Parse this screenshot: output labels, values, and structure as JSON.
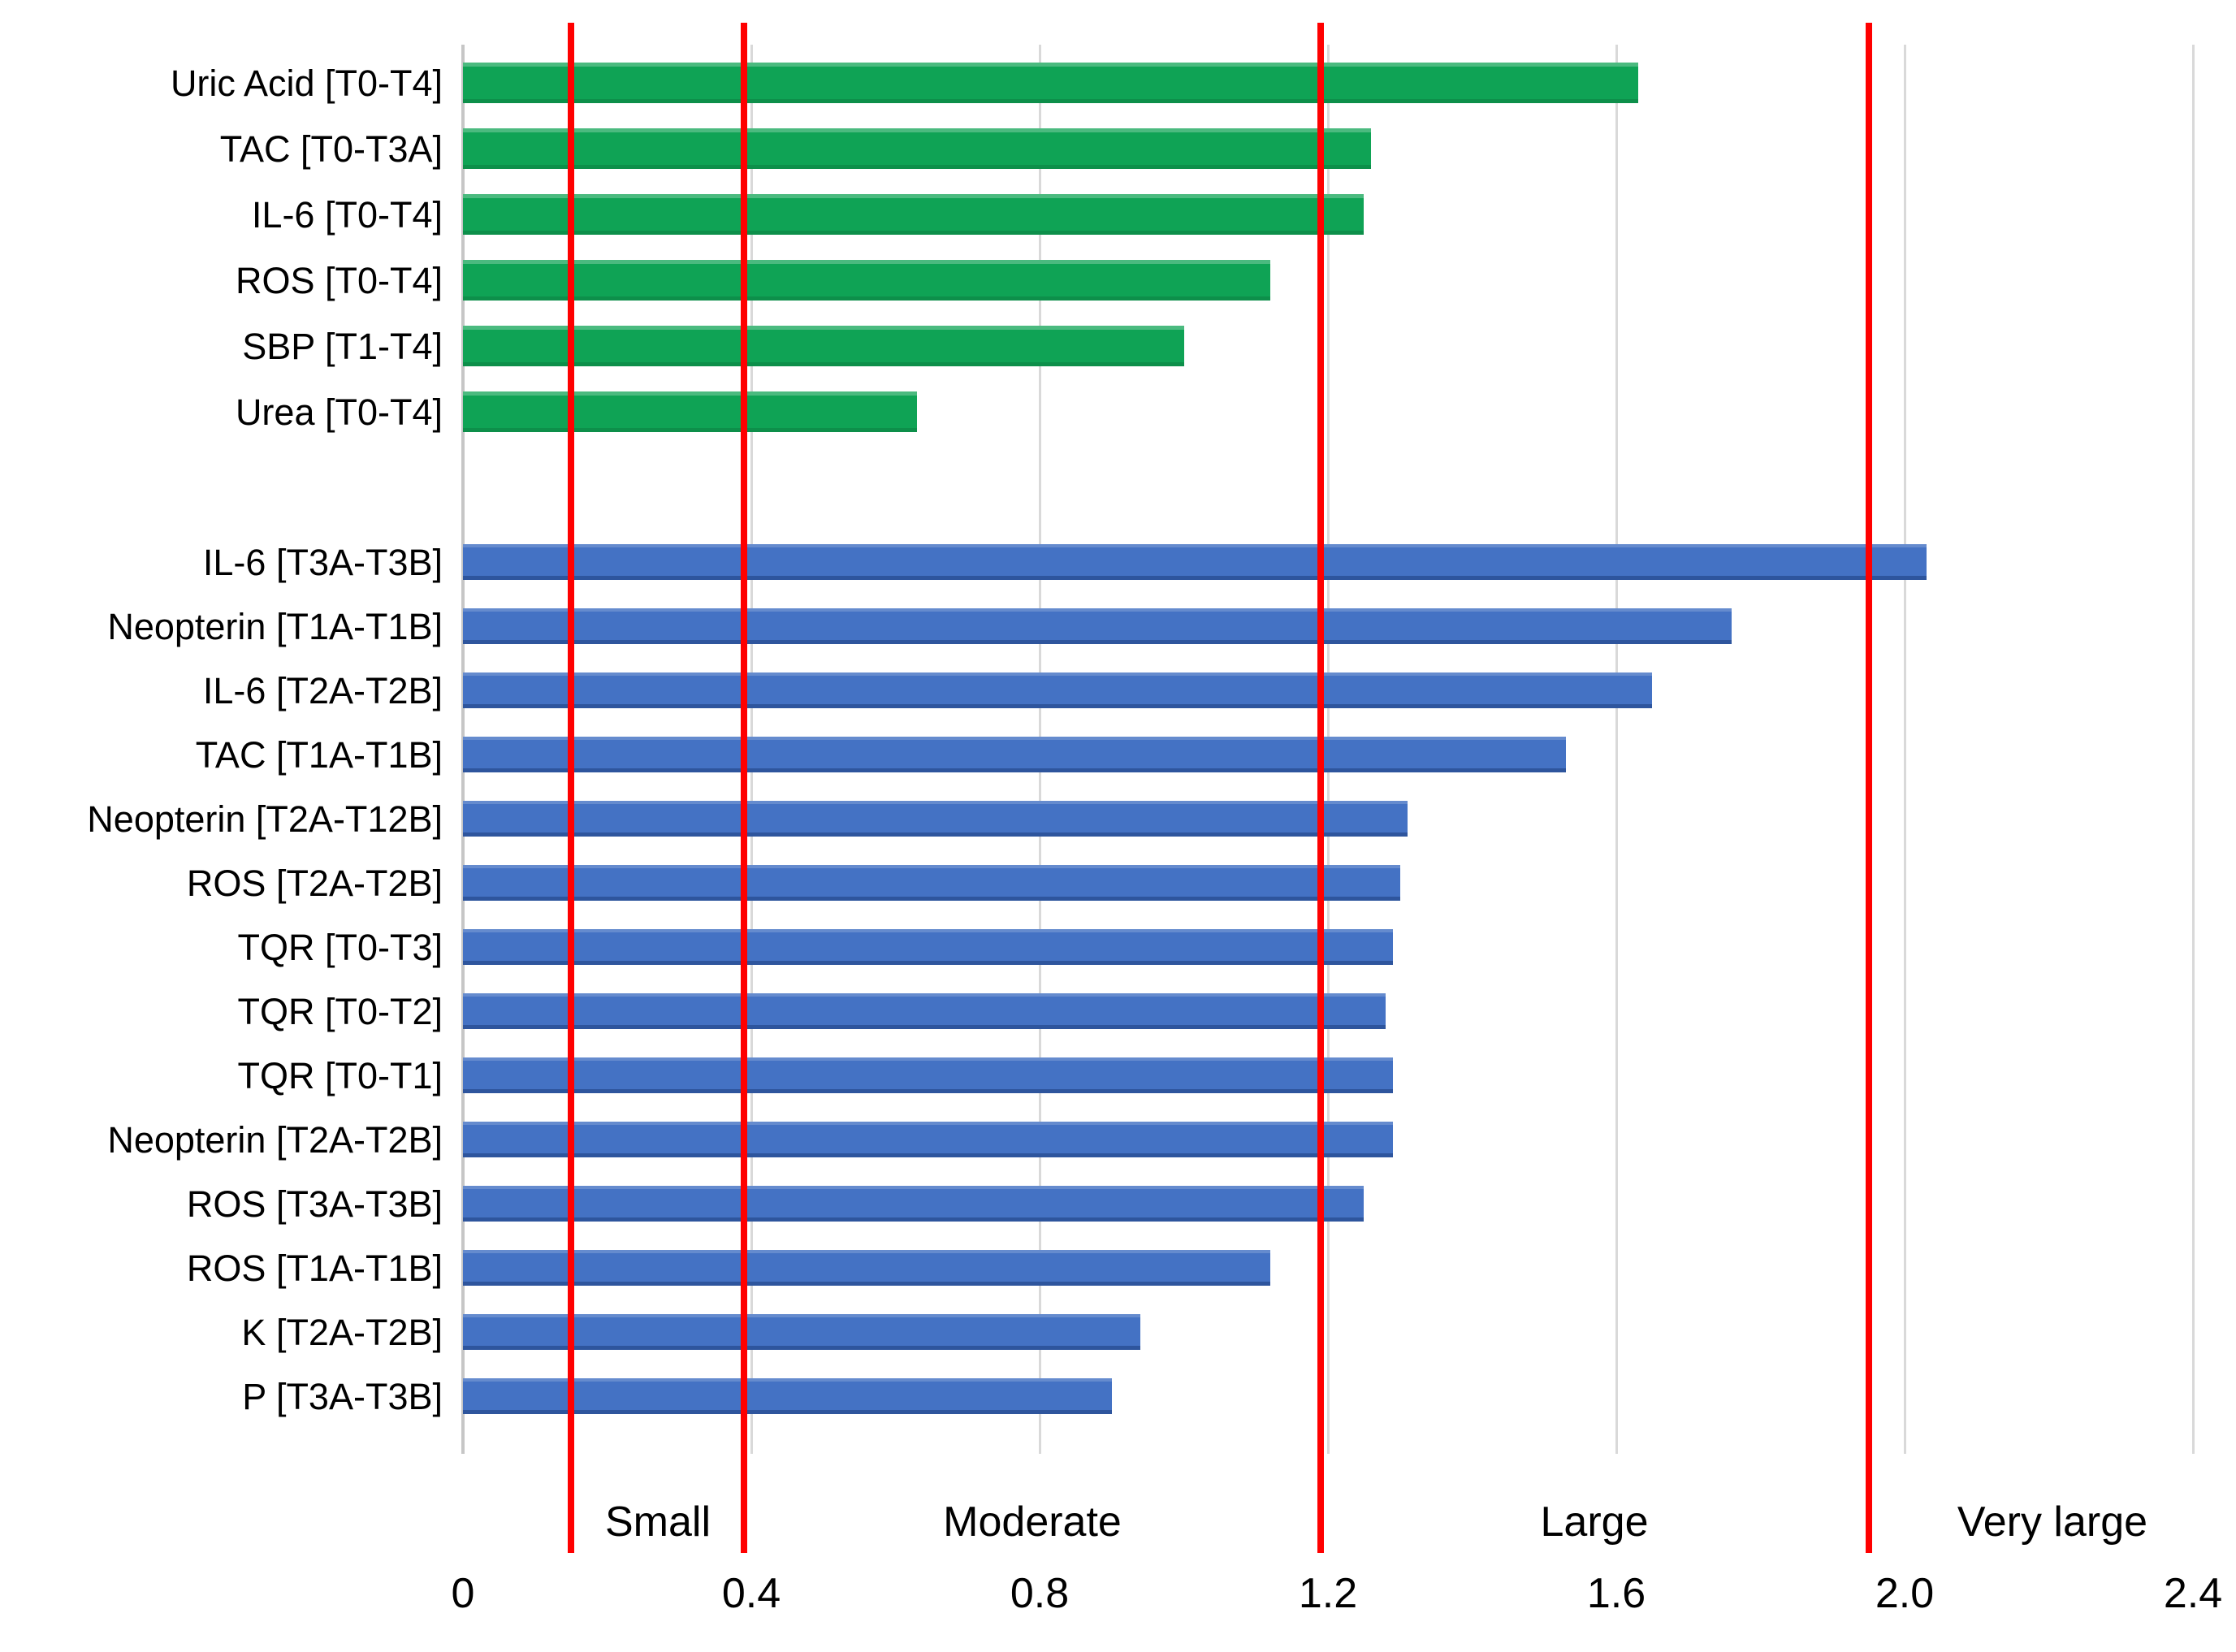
{
  "chart_data": {
    "type": "bar",
    "orientation": "horizontal",
    "title": "",
    "xlabel": "",
    "ylabel": "",
    "xlim": [
      0,
      2.4
    ],
    "grid": true,
    "legend_position": "none",
    "x_ticks": [
      {
        "value": 0.0,
        "label": "0"
      },
      {
        "value": 0.4,
        "label": "0.4"
      },
      {
        "value": 0.8,
        "label": "0.8"
      },
      {
        "value": 1.2,
        "label": "1.2"
      },
      {
        "value": 1.6,
        "label": "1.6"
      },
      {
        "value": 2.0,
        "label": "2.0"
      },
      {
        "value": 2.4,
        "label": "2.4"
      }
    ],
    "thresholds": [
      {
        "value": 0.15,
        "color": "#ff0000"
      },
      {
        "value": 0.39,
        "color": "#ff0000"
      },
      {
        "value": 1.19,
        "color": "#ff0000"
      },
      {
        "value": 1.95,
        "color": "#ff0000"
      }
    ],
    "zones": [
      {
        "label": "Small"
      },
      {
        "label": "Moderate"
      },
      {
        "label": "Large"
      },
      {
        "label": "Very large"
      }
    ],
    "groups": [
      {
        "name": "green-series",
        "color": "#0fa355",
        "bars": [
          {
            "label": "Uric Acid [T0-T4]",
            "value": 1.63
          },
          {
            "label": "TAC [T0-T3A]",
            "value": 1.26
          },
          {
            "label": "IL-6 [T0-T4]",
            "value": 1.25
          },
          {
            "label": "ROS [T0-T4]",
            "value": 1.12
          },
          {
            "label": "SBP [T1-T4]",
            "value": 1.0
          },
          {
            "label": "Urea [T0-T4]",
            "value": 0.63
          }
        ]
      },
      {
        "name": "blue-series",
        "color": "#4472c4",
        "bars": [
          {
            "label": "IL-6 [T3A-T3B]",
            "value": 2.03
          },
          {
            "label": "Neopterin [T1A-T1B]",
            "value": 1.76
          },
          {
            "label": "IL-6 [T2A-T2B]",
            "value": 1.65
          },
          {
            "label": "TAC [T1A-T1B]",
            "value": 1.53
          },
          {
            "label": "Neopterin [T2A-T12B]",
            "value": 1.31
          },
          {
            "label": "ROS [T2A-T2B]",
            "value": 1.3
          },
          {
            "label": "TQR [T0-T3]",
            "value": 1.29
          },
          {
            "label": "TQR [T0-T2]",
            "value": 1.28
          },
          {
            "label": "TQR [T0-T1]",
            "value": 1.29
          },
          {
            "label": "Neopterin [T2A-T2B]",
            "value": 1.29
          },
          {
            "label": "ROS [T3A-T3B]",
            "value": 1.25
          },
          {
            "label": "ROS [T1A-T1B]",
            "value": 1.12
          },
          {
            "label": "K [T2A-T2B]",
            "value": 0.94
          },
          {
            "label": "P [T3A-T3B]",
            "value": 0.9
          }
        ]
      }
    ],
    "colors": {
      "green_bar": "#0fa355",
      "blue_bar": "#4472c4",
      "threshold_line": "#ff0000",
      "gridline": "#d9d9d9",
      "axis_line": "#c6c6c6",
      "text": "#000000",
      "background": "#ffffff"
    }
  }
}
